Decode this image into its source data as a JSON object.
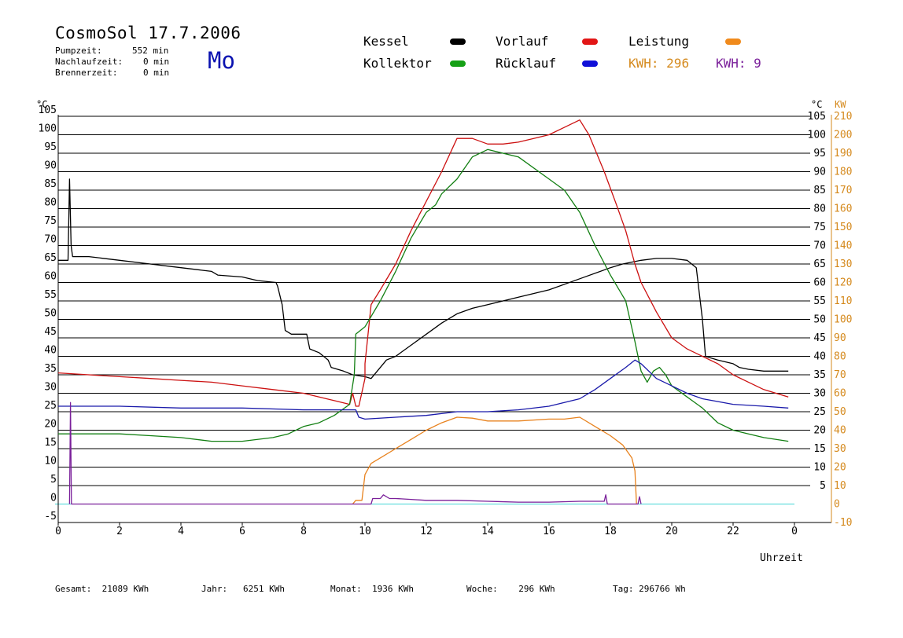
{
  "header": {
    "title": "CosmoSol 17.7.2006",
    "day": "Mo",
    "stats": [
      {
        "label": "Pumpzeit:",
        "value": "552 min"
      },
      {
        "label": "Nachlaufzeit:",
        "value": "0 min"
      },
      {
        "label": "Brennerzeit:",
        "value": "0 min"
      }
    ]
  },
  "legend": {
    "kessel": "Kessel",
    "vorlauf": "Vorlauf",
    "leistung": "Leistung",
    "kollektor": "Kollektor",
    "ruecklauf": "Rücklauf",
    "kwh1_label": "KWH:",
    "kwh1_value": "296",
    "kwh2_label": "KWH:",
    "kwh2_value": "9"
  },
  "footer": {
    "gesamt_label": "Gesamt:",
    "gesamt_value": "21089 KWh",
    "jahr_label": "Jahr:",
    "jahr_value": "6251 KWh",
    "monat_label": "Monat:",
    "monat_value": "1936 KWh",
    "woche_label": "Woche:",
    "woche_value": "296 KWh",
    "tag_label": "Tag:",
    "tag_value": "296766 Wh"
  },
  "colors": {
    "kessel": "#000000",
    "vorlauf": "#cc1111",
    "leistung": "#e8821e",
    "kollektor": "#127f12",
    "ruecklauf": "#1a1aaa",
    "kwh2": "#7a1f9a",
    "kw_axis": "#d58a1e",
    "zero_line": "#44d6d6"
  },
  "chart_data": {
    "type": "line",
    "xlabel": "Uhrzeit",
    "xlim": [
      0,
      24
    ],
    "x_ticks": [
      "0",
      "2",
      "4",
      "6",
      "8",
      "10",
      "12",
      "14",
      "16",
      "18",
      "20",
      "22",
      "0"
    ],
    "left_axis": {
      "unit": "°C",
      "ylim": [
        -5,
        105
      ],
      "ticks": [
        "-5",
        "0",
        "5",
        "10",
        "15",
        "20",
        "25",
        "30",
        "35",
        "40",
        "45",
        "50",
        "55",
        "60",
        "65",
        "70",
        "75",
        "80",
        "85",
        "90",
        "95",
        "100",
        "105"
      ]
    },
    "right_axis": {
      "unit": "°C",
      "ylim": [
        -5,
        105
      ],
      "ticks": [
        "5",
        "10",
        "15",
        "20",
        "25",
        "30",
        "35",
        "40",
        "45",
        "50",
        "55",
        "60",
        "65",
        "70",
        "75",
        "80",
        "85",
        "90",
        "95",
        "100",
        "105"
      ]
    },
    "kw_axis": {
      "unit": "KW",
      "ylim": [
        -10,
        210
      ],
      "ticks": [
        "-10",
        "0",
        "10",
        "20",
        "30",
        "40",
        "50",
        "60",
        "70",
        "80",
        "90",
        "100",
        "110",
        "120",
        "130",
        "140",
        "150",
        "160",
        "170",
        "180",
        "190",
        "200",
        "210"
      ]
    },
    "series": [
      {
        "name": "Kessel",
        "color": "#000000",
        "axis": "C",
        "points": [
          [
            0,
            66
          ],
          [
            0.32,
            66
          ],
          [
            0.37,
            88
          ],
          [
            0.42,
            70
          ],
          [
            0.47,
            67
          ],
          [
            1,
            67
          ],
          [
            2,
            66
          ],
          [
            3,
            65
          ],
          [
            4,
            64
          ],
          [
            5,
            63
          ],
          [
            5.2,
            62
          ],
          [
            6,
            61.5
          ],
          [
            6.5,
            60.5
          ],
          [
            7.1,
            60
          ],
          [
            7.15,
            59
          ],
          [
            7.3,
            54
          ],
          [
            7.4,
            47
          ],
          [
            7.6,
            46
          ],
          [
            8.1,
            46
          ],
          [
            8.2,
            42
          ],
          [
            8.5,
            41
          ],
          [
            8.8,
            39
          ],
          [
            8.9,
            37
          ],
          [
            9.3,
            36
          ],
          [
            9.6,
            35
          ],
          [
            10,
            34.5
          ],
          [
            10.2,
            34
          ],
          [
            10.4,
            36
          ],
          [
            10.6,
            38
          ],
          [
            10.7,
            39
          ],
          [
            11,
            40
          ],
          [
            11.5,
            43
          ],
          [
            12,
            46
          ],
          [
            12.5,
            49
          ],
          [
            13,
            51.5
          ],
          [
            13.5,
            53
          ],
          [
            14,
            54
          ],
          [
            15,
            56
          ],
          [
            16,
            58
          ],
          [
            17,
            61
          ],
          [
            18,
            64
          ],
          [
            18.4,
            65
          ],
          [
            19,
            66
          ],
          [
            19.5,
            66.5
          ],
          [
            20,
            66.5
          ],
          [
            20.5,
            66
          ],
          [
            20.8,
            64
          ],
          [
            21,
            50
          ],
          [
            21.1,
            40
          ],
          [
            21.5,
            39
          ],
          [
            22,
            38
          ],
          [
            22.2,
            37
          ],
          [
            22.5,
            36.5
          ],
          [
            23,
            36
          ],
          [
            23.8,
            36
          ]
        ]
      },
      {
        "name": "Vorlauf",
        "color": "#cc1111",
        "axis": "C",
        "points": [
          [
            0,
            35.5
          ],
          [
            1,
            35
          ],
          [
            2,
            34.5
          ],
          [
            3,
            34
          ],
          [
            4,
            33.5
          ],
          [
            5,
            33
          ],
          [
            6,
            32
          ],
          [
            7,
            31
          ],
          [
            8,
            30
          ],
          [
            9,
            28
          ],
          [
            9.5,
            27
          ],
          [
            9.6,
            30
          ],
          [
            9.7,
            26.5
          ],
          [
            9.8,
            26.5
          ],
          [
            10,
            34
          ],
          [
            10,
            38
          ],
          [
            10.2,
            54
          ],
          [
            10.5,
            58
          ],
          [
            11,
            65
          ],
          [
            11.5,
            74
          ],
          [
            12,
            82
          ],
          [
            12.5,
            90
          ],
          [
            13,
            99
          ],
          [
            13.5,
            99
          ],
          [
            14,
            97.5
          ],
          [
            14.5,
            97.5
          ],
          [
            15,
            98
          ],
          [
            15.5,
            99
          ],
          [
            16,
            100
          ],
          [
            16.5,
            102
          ],
          [
            17,
            104
          ],
          [
            17.3,
            100
          ],
          [
            17.8,
            90
          ],
          [
            18.2,
            81
          ],
          [
            18.5,
            74
          ],
          [
            18.8,
            65
          ],
          [
            19,
            60
          ],
          [
            19.5,
            52
          ],
          [
            20,
            45
          ],
          [
            20.5,
            42
          ],
          [
            21,
            40
          ],
          [
            21.5,
            38
          ],
          [
            22,
            35
          ],
          [
            22.5,
            33
          ],
          [
            23,
            31
          ],
          [
            23.8,
            29
          ]
        ]
      },
      {
        "name": "Kollektor",
        "color": "#127f12",
        "axis": "C",
        "points": [
          [
            0,
            19
          ],
          [
            1,
            19
          ],
          [
            2,
            19
          ],
          [
            3,
            18.5
          ],
          [
            4,
            18
          ],
          [
            5,
            17
          ],
          [
            6,
            17
          ],
          [
            7,
            18
          ],
          [
            7.5,
            19
          ],
          [
            8,
            21
          ],
          [
            8.5,
            22
          ],
          [
            9,
            24
          ],
          [
            9.5,
            27
          ],
          [
            9.65,
            35
          ],
          [
            9.7,
            46
          ],
          [
            10,
            48
          ],
          [
            10.5,
            55
          ],
          [
            11,
            63
          ],
          [
            11.5,
            72
          ],
          [
            12,
            79
          ],
          [
            12.3,
            81
          ],
          [
            12.5,
            84
          ],
          [
            13,
            88
          ],
          [
            13.5,
            94
          ],
          [
            14,
            96
          ],
          [
            15,
            94
          ],
          [
            16,
            88
          ],
          [
            16.5,
            85
          ],
          [
            17,
            79
          ],
          [
            17.5,
            70
          ],
          [
            18,
            62
          ],
          [
            18.5,
            55
          ],
          [
            18.8,
            44
          ],
          [
            19,
            36
          ],
          [
            19.2,
            33
          ],
          [
            19.4,
            36
          ],
          [
            19.6,
            37
          ],
          [
            19.8,
            35
          ],
          [
            20,
            32
          ],
          [
            20.5,
            29
          ],
          [
            21,
            26
          ],
          [
            21.5,
            22
          ],
          [
            22,
            20
          ],
          [
            22.5,
            19
          ],
          [
            23,
            18
          ],
          [
            23.8,
            17
          ]
        ]
      },
      {
        "name": "Rücklauf",
        "color": "#1a1aaa",
        "axis": "C",
        "points": [
          [
            0,
            26.5
          ],
          [
            2,
            26.5
          ],
          [
            4,
            26
          ],
          [
            6,
            26
          ],
          [
            8,
            25.5
          ],
          [
            9.7,
            25.5
          ],
          [
            9.8,
            23.5
          ],
          [
            10,
            23
          ],
          [
            11,
            23.5
          ],
          [
            12,
            24
          ],
          [
            13,
            25
          ],
          [
            14,
            25
          ],
          [
            15,
            25.5
          ],
          [
            16,
            26.5
          ],
          [
            17,
            28.5
          ],
          [
            17.5,
            31
          ],
          [
            18,
            34
          ],
          [
            18.5,
            37
          ],
          [
            18.8,
            39
          ],
          [
            19,
            38
          ],
          [
            19.5,
            34
          ],
          [
            20,
            32
          ],
          [
            20.5,
            30
          ],
          [
            21,
            28.5
          ],
          [
            22,
            27
          ],
          [
            23,
            26.5
          ],
          [
            23.8,
            26
          ]
        ]
      },
      {
        "name": "Leistung",
        "color": "#e8821e",
        "axis": "KW",
        "points": [
          [
            9.6,
            0
          ],
          [
            9.7,
            2
          ],
          [
            9.9,
            2
          ],
          [
            10,
            16
          ],
          [
            10.2,
            22
          ],
          [
            10.5,
            25
          ],
          [
            11,
            30
          ],
          [
            11.5,
            35
          ],
          [
            12,
            40
          ],
          [
            12.5,
            44
          ],
          [
            13,
            47
          ],
          [
            13.5,
            46.5
          ],
          [
            14,
            45
          ],
          [
            15,
            45
          ],
          [
            16,
            46
          ],
          [
            16.5,
            46
          ],
          [
            17,
            47
          ],
          [
            17.5,
            42
          ],
          [
            18,
            37
          ],
          [
            18.4,
            32
          ],
          [
            18.7,
            25
          ],
          [
            18.8,
            18
          ],
          [
            18.85,
            0
          ]
        ]
      },
      {
        "name": "KWH 9",
        "color": "#7a1f9a",
        "axis": "KW",
        "points": [
          [
            0.37,
            0
          ],
          [
            0.4,
            55
          ],
          [
            0.43,
            0
          ],
          [
            10.2,
            0
          ],
          [
            10.25,
            3
          ],
          [
            10.5,
            3
          ],
          [
            10.6,
            5
          ],
          [
            10.8,
            3
          ],
          [
            11,
            3
          ],
          [
            11.5,
            2.5
          ],
          [
            12,
            2
          ],
          [
            13,
            2
          ],
          [
            14,
            1.5
          ],
          [
            15,
            1
          ],
          [
            16,
            1
          ],
          [
            17,
            1.5
          ],
          [
            17.8,
            1.5
          ],
          [
            17.85,
            5
          ],
          [
            17.9,
            0
          ],
          [
            18.9,
            0
          ],
          [
            18.95,
            4
          ],
          [
            19,
            0
          ]
        ]
      }
    ]
  }
}
